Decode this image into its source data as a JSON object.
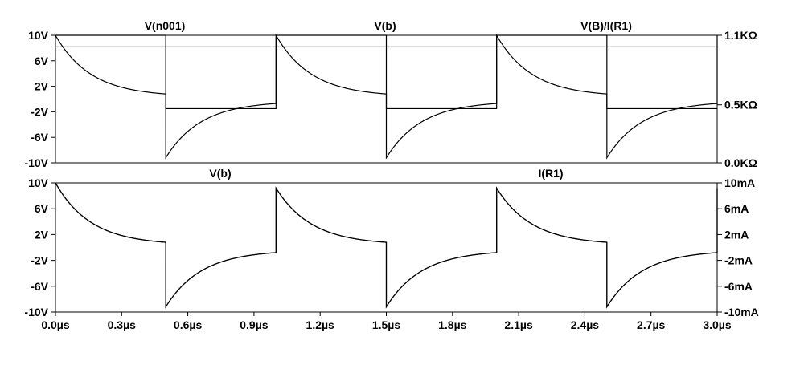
{
  "chart_data": [
    {
      "type": "line",
      "trace_headers": [
        "V(n001)",
        "V(b)",
        "V(B)/I(R1)"
      ],
      "xlim": [
        0,
        3.0
      ],
      "x_unit": "µs",
      "ylim": [
        -10,
        10
      ],
      "y_ticks": [
        "10V",
        "6V",
        "2V",
        "-2V",
        "-6V",
        "-10V"
      ],
      "y_tick_values": [
        10,
        6,
        2,
        -2,
        -6,
        -10
      ],
      "y2lim": [
        0,
        1.1
      ],
      "y2_ticks": [
        "1.1KΩ",
        "0.5KΩ",
        "0.0KΩ"
      ],
      "y2_tick_values": [
        1.1,
        0.5,
        0.0
      ],
      "series": [
        {
          "name": "V(n001)",
          "axis": "left",
          "kind": "square",
          "period_us": 1.0,
          "duty": 0.5,
          "values": [
            10,
            -1.5
          ]
        },
        {
          "name": "V(b)",
          "axis": "left",
          "kind": "rc",
          "period_us": 1.0,
          "tau_us": 0.16,
          "high_start": 10,
          "high_end": 0.8,
          "low_start": -9.2,
          "low_end": -0.7,
          "first_high_start": 10
        },
        {
          "name": "V(B)/I(R1)",
          "axis": "right",
          "kind": "constant",
          "value": 1.0
        }
      ]
    },
    {
      "type": "line",
      "trace_headers": [
        "V(b)",
        "I(R1)"
      ],
      "xlim": [
        0,
        3.0
      ],
      "x_unit": "µs",
      "x_ticks": [
        "0.0µs",
        "0.3µs",
        "0.6µs",
        "0.9µs",
        "1.2µs",
        "1.5µs",
        "1.8µs",
        "2.1µs",
        "2.4µs",
        "2.7µs",
        "3.0µs"
      ],
      "x_tick_values": [
        0,
        0.3,
        0.6,
        0.9,
        1.2,
        1.5,
        1.8,
        2.1,
        2.4,
        2.7,
        3.0
      ],
      "ylim": [
        -10,
        10
      ],
      "y_ticks": [
        "10V",
        "6V",
        "2V",
        "-2V",
        "-6V",
        "-10V"
      ],
      "y_tick_values": [
        10,
        6,
        2,
        -2,
        -6,
        -10
      ],
      "y2lim": [
        -10,
        10
      ],
      "y2_ticks": [
        "10mA",
        "6mA",
        "2mA",
        "-2mA",
        "-6mA",
        "-10mA"
      ],
      "y2_tick_values": [
        10,
        6,
        2,
        -2,
        -6,
        -10
      ],
      "series": [
        {
          "name": "V(b)",
          "axis": "left",
          "kind": "rc",
          "period_us": 1.0,
          "tau_us": 0.16,
          "high_start": 9.2,
          "high_end": 0.8,
          "low_start": -9.2,
          "low_end": -0.8,
          "first_high_start": 10
        },
        {
          "name": "I(R1)",
          "axis": "right",
          "kind": "rc",
          "period_us": 1.0,
          "tau_us": 0.16,
          "high_start": 9.2,
          "high_end": 0.8,
          "low_start": -9.2,
          "low_end": -0.8,
          "first_high_start": 10
        }
      ]
    }
  ]
}
